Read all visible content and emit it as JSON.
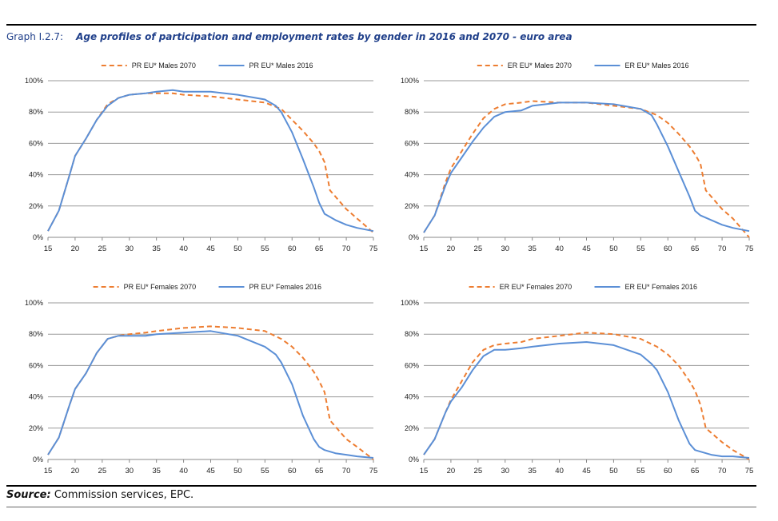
{
  "header": {
    "graph_label": "Graph I.2.7:",
    "title": "Age profiles of participation and employment rates by gender in 2016 and 2070 - euro area"
  },
  "source": {
    "label": "Source:",
    "text": "Commission services, EPC."
  },
  "colors": {
    "series_2070": "#ed7d31",
    "series_2016": "#5b8fd6"
  },
  "chart_data": [
    {
      "type": "line",
      "x_ticks": [
        15,
        20,
        25,
        30,
        35,
        40,
        45,
        50,
        55,
        60,
        65,
        70,
        75
      ],
      "y_ticks": [
        "0%",
        "20%",
        "40%",
        "60%",
        "80%",
        "100%"
      ],
      "xlim": [
        15,
        75
      ],
      "ylim": [
        0,
        100
      ],
      "grid": true,
      "legend": "top",
      "series": [
        {
          "name": "PR EU* Males 2070",
          "style": "dashed",
          "color": "#ed7d31",
          "x": [
            15,
            17,
            19,
            20,
            22,
            24,
            26,
            28,
            30,
            33,
            35,
            38,
            40,
            45,
            50,
            55,
            58,
            60,
            62,
            64,
            65,
            66,
            67,
            70,
            72,
            75
          ],
          "y": [
            4,
            17,
            40,
            52,
            63,
            75,
            85,
            89,
            91,
            92,
            92,
            92,
            91,
            90,
            88,
            86,
            82,
            75,
            68,
            60,
            55,
            48,
            30,
            18,
            12,
            3
          ]
        },
        {
          "name": "PR EU* Males 2016",
          "style": "solid",
          "color": "#5b8fd6",
          "x": [
            15,
            17,
            19,
            20,
            22,
            24,
            26,
            28,
            30,
            33,
            35,
            38,
            40,
            45,
            50,
            55,
            57,
            58,
            60,
            62,
            64,
            65,
            66,
            68,
            70,
            72,
            75
          ],
          "y": [
            4,
            17,
            40,
            52,
            63,
            75,
            84,
            89,
            91,
            92,
            93,
            94,
            93,
            93,
            91,
            88,
            84,
            80,
            67,
            50,
            32,
            22,
            15,
            11,
            8,
            6,
            4
          ]
        }
      ]
    },
    {
      "type": "line",
      "x_ticks": [
        15,
        20,
        25,
        30,
        35,
        40,
        45,
        50,
        55,
        60,
        65,
        70,
        75
      ],
      "y_ticks": [
        "0%",
        "20%",
        "40%",
        "60%",
        "80%",
        "100%"
      ],
      "xlim": [
        15,
        75
      ],
      "ylim": [
        0,
        100
      ],
      "grid": true,
      "legend": "top",
      "series": [
        {
          "name": "ER EU* Males 2070",
          "style": "dashed",
          "color": "#ed7d31",
          "x": [
            15,
            17,
            19,
            20,
            22,
            24,
            26,
            28,
            30,
            33,
            35,
            40,
            45,
            50,
            55,
            58,
            60,
            62,
            64,
            65,
            66,
            67,
            70,
            72,
            75
          ],
          "y": [
            3,
            14,
            35,
            44,
            55,
            66,
            76,
            82,
            85,
            86,
            87,
            86,
            86,
            84,
            82,
            78,
            73,
            66,
            58,
            53,
            47,
            30,
            18,
            12,
            0
          ]
        },
        {
          "name": "ER EU* Males 2016",
          "style": "solid",
          "color": "#5b8fd6",
          "x": [
            15,
            17,
            19,
            20,
            22,
            24,
            26,
            28,
            30,
            33,
            35,
            40,
            45,
            50,
            55,
            57,
            58,
            60,
            62,
            64,
            65,
            66,
            68,
            70,
            72,
            75
          ],
          "y": [
            3,
            14,
            33,
            41,
            51,
            61,
            70,
            77,
            80,
            81,
            84,
            86,
            86,
            85,
            82,
            78,
            72,
            58,
            42,
            26,
            17,
            14,
            11,
            8,
            6,
            4
          ]
        }
      ]
    },
    {
      "type": "line",
      "x_ticks": [
        15,
        20,
        25,
        30,
        35,
        40,
        45,
        50,
        55,
        60,
        65,
        70,
        75
      ],
      "y_ticks": [
        "0%",
        "20%",
        "40%",
        "60%",
        "80%",
        "100%"
      ],
      "xlim": [
        15,
        75
      ],
      "ylim": [
        0,
        100
      ],
      "grid": true,
      "legend": "top",
      "series": [
        {
          "name": "PR EU* Females 2070",
          "style": "dashed",
          "color": "#ed7d31",
          "x": [
            15,
            17,
            19,
            20,
            22,
            24,
            26,
            28,
            30,
            33,
            35,
            40,
            45,
            50,
            55,
            58,
            60,
            62,
            64,
            65,
            66,
            67,
            70,
            72,
            75
          ],
          "y": [
            3,
            14,
            35,
            45,
            55,
            68,
            77,
            79,
            80,
            81,
            82,
            84,
            85,
            84,
            82,
            77,
            72,
            65,
            56,
            50,
            43,
            25,
            13,
            8,
            0
          ]
        },
        {
          "name": "PR EU* Females 2016",
          "style": "solid",
          "color": "#5b8fd6",
          "x": [
            15,
            17,
            19,
            20,
            22,
            24,
            26,
            28,
            30,
            33,
            35,
            40,
            45,
            50,
            55,
            57,
            58,
            60,
            62,
            64,
            65,
            66,
            68,
            70,
            72,
            75
          ],
          "y": [
            3,
            14,
            35,
            45,
            55,
            68,
            77,
            79,
            79,
            79,
            80,
            81,
            82,
            79,
            72,
            67,
            62,
            48,
            28,
            13,
            8,
            6,
            4,
            3,
            2,
            1
          ]
        }
      ]
    },
    {
      "type": "line",
      "x_ticks": [
        15,
        20,
        25,
        30,
        35,
        40,
        45,
        50,
        55,
        60,
        65,
        70,
        75
      ],
      "y_ticks": [
        "0%",
        "20%",
        "40%",
        "60%",
        "80%",
        "100%"
      ],
      "xlim": [
        15,
        75
      ],
      "ylim": [
        0,
        100
      ],
      "grid": true,
      "legend": "top",
      "series": [
        {
          "name": "ER EU* Females 2070",
          "style": "dashed",
          "color": "#ed7d31",
          "x": [
            15,
            17,
            19,
            20,
            22,
            24,
            26,
            28,
            30,
            33,
            35,
            40,
            45,
            50,
            55,
            58,
            60,
            62,
            64,
            65,
            66,
            67,
            70,
            72,
            75
          ],
          "y": [
            3,
            13,
            30,
            38,
            50,
            62,
            70,
            73,
            74,
            75,
            77,
            79,
            81,
            80,
            77,
            72,
            67,
            60,
            50,
            44,
            35,
            20,
            11,
            6,
            0
          ]
        },
        {
          "name": "ER EU* Females 2016",
          "style": "solid",
          "color": "#5b8fd6",
          "x": [
            15,
            17,
            19,
            20,
            22,
            24,
            26,
            28,
            30,
            33,
            35,
            40,
            45,
            50,
            55,
            57,
            58,
            60,
            62,
            64,
            65,
            66,
            68,
            70,
            72,
            75
          ],
          "y": [
            3,
            13,
            30,
            37,
            46,
            57,
            66,
            70,
            70,
            71,
            72,
            74,
            75,
            73,
            67,
            61,
            57,
            43,
            25,
            10,
            6,
            5,
            3,
            2,
            2,
            1
          ]
        }
      ]
    }
  ]
}
